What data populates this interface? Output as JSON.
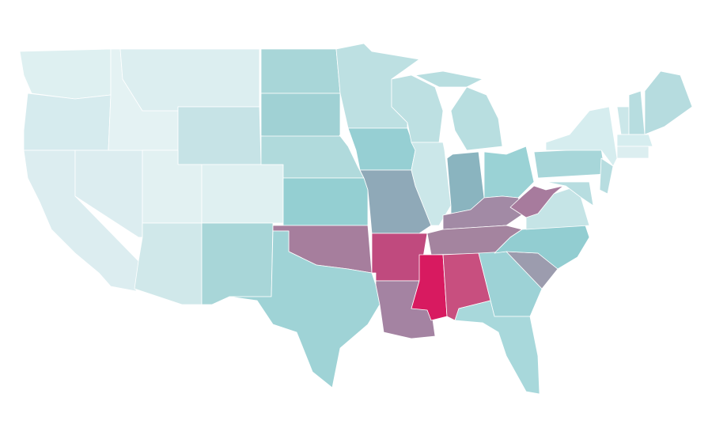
{
  "map": {
    "regions": [
      {
        "color": "#def0f1"
      },
      {
        "color": "#d6ebee"
      },
      {
        "color": "#dcedf0"
      },
      {
        "color": "#dcedf0"
      },
      {
        "color": "#e4f2f3"
      },
      {
        "color": "#dceef0"
      },
      {
        "color": "#c6e3e6"
      },
      {
        "color": "#e2f1f2"
      },
      {
        "color": "#dff0f1"
      },
      {
        "color": "#d0e8ea"
      },
      {
        "color": "#a8d6d8"
      },
      {
        "color": "#a8d6d8"
      },
      {
        "color": "#a0d1d4"
      },
      {
        "color": "#b0dadc"
      },
      {
        "color": "#94cfd2"
      },
      {
        "color": "#a67e9d"
      },
      {
        "color": "#9fd3d6"
      },
      {
        "color": "#bde0e2"
      },
      {
        "color": "#96cfd3"
      },
      {
        "color": "#8fa9b8"
      },
      {
        "color": "#c04a7e"
      },
      {
        "color": "#a483a2"
      },
      {
        "color": "#bde0e2"
      },
      {
        "color": "#cbe7e9"
      },
      {
        "color": "#b8dee0"
      },
      {
        "color": "#b8dee0"
      },
      {
        "color": "#8ab4bf"
      },
      {
        "color": "#9ad2d5"
      },
      {
        "color": "#a28aa5"
      },
      {
        "color": "#a4849f"
      },
      {
        "color": "#d81a60"
      },
      {
        "color": "#c84f7f"
      },
      {
        "color": "#9dd2d6"
      },
      {
        "color": "#a8d8db"
      },
      {
        "color": "#9c9cae"
      },
      {
        "color": "#92cdd1"
      },
      {
        "color": "#c5e4e6"
      },
      {
        "color": "#a77b9d"
      },
      {
        "color": "#a7d6d9"
      },
      {
        "color": "#d6edef"
      },
      {
        "color": "#b7dde0"
      },
      {
        "color": "#b7dde0"
      },
      {
        "color": "#cbe7e9"
      },
      {
        "color": "#b7dde0"
      },
      {
        "color": "#b6dcdf"
      },
      {
        "color": "#d6edef"
      },
      {
        "color": "#dceef0"
      }
    ]
  }
}
